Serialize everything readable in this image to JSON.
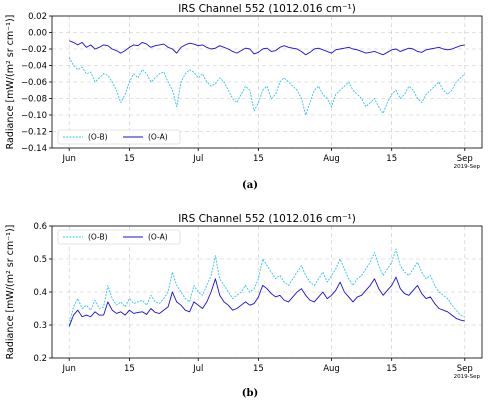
{
  "chart_data": [
    {
      "type": "line",
      "title": "IRS Channel 552 (1012.016 cm⁻¹)",
      "ylabel": "Radiance [mW/(m² sr cm⁻¹)]",
      "x_ticks": [
        "Jun",
        "15",
        "Jul",
        "15",
        "Aug",
        "15",
        "Sep"
      ],
      "x_tick_dates": [
        "2019-06-01",
        "2019-06-15",
        "2019-07-01",
        "2019-07-15",
        "2019-08-01",
        "2019-08-15",
        "2019-09-01"
      ],
      "x_offset_label": "2019-Sep",
      "ylim": [
        -0.14,
        0.02
      ],
      "y_ticks": [
        -0.14,
        -0.12,
        -0.1,
        -0.08,
        -0.06,
        -0.04,
        -0.02,
        0.0,
        0.02
      ],
      "y_tick_labels": [
        "−0.14",
        "−0.12",
        "−0.10",
        "−0.08",
        "−0.06",
        "−0.04",
        "−0.02",
        "0.00",
        "0.02"
      ],
      "grid": true,
      "legend_position": "lower-left",
      "caption": "(a)",
      "series": [
        {
          "name": "(O-B)",
          "color": "#2ec4f0",
          "style": "dashed",
          "values": [
            -0.03,
            -0.04,
            -0.045,
            -0.042,
            -0.05,
            -0.048,
            -0.06,
            -0.055,
            -0.05,
            -0.052,
            -0.06,
            -0.07,
            -0.085,
            -0.075,
            -0.06,
            -0.05,
            -0.055,
            -0.045,
            -0.05,
            -0.06,
            -0.055,
            -0.05,
            -0.048,
            -0.06,
            -0.07,
            -0.09,
            -0.06,
            -0.05,
            -0.045,
            -0.048,
            -0.055,
            -0.05,
            -0.06,
            -0.065,
            -0.062,
            -0.055,
            -0.06,
            -0.07,
            -0.08,
            -0.085,
            -0.075,
            -0.065,
            -0.07,
            -0.095,
            -0.085,
            -0.07,
            -0.065,
            -0.08,
            -0.075,
            -0.06,
            -0.055,
            -0.06,
            -0.065,
            -0.07,
            -0.08,
            -0.1,
            -0.085,
            -0.07,
            -0.065,
            -0.075,
            -0.08,
            -0.09,
            -0.075,
            -0.07,
            -0.065,
            -0.06,
            -0.07,
            -0.075,
            -0.08,
            -0.09,
            -0.085,
            -0.08,
            -0.09,
            -0.098,
            -0.085,
            -0.075,
            -0.07,
            -0.08,
            -0.075,
            -0.065,
            -0.07,
            -0.08,
            -0.085,
            -0.075,
            -0.07,
            -0.065,
            -0.06,
            -0.07,
            -0.075,
            -0.07,
            -0.06,
            -0.055,
            -0.05
          ]
        },
        {
          "name": "(O-A)",
          "color": "#1a0fd4",
          "style": "solid",
          "values": [
            -0.01,
            -0.012,
            -0.015,
            -0.012,
            -0.018,
            -0.015,
            -0.02,
            -0.018,
            -0.015,
            -0.016,
            -0.02,
            -0.022,
            -0.025,
            -0.022,
            -0.018,
            -0.015,
            -0.016,
            -0.012,
            -0.014,
            -0.018,
            -0.016,
            -0.015,
            -0.014,
            -0.018,
            -0.02,
            -0.025,
            -0.018,
            -0.015,
            -0.013,
            -0.014,
            -0.016,
            -0.015,
            -0.018,
            -0.02,
            -0.019,
            -0.016,
            -0.018,
            -0.02,
            -0.023,
            -0.025,
            -0.022,
            -0.019,
            -0.02,
            -0.026,
            -0.024,
            -0.02,
            -0.019,
            -0.023,
            -0.022,
            -0.018,
            -0.016,
            -0.018,
            -0.019,
            -0.02,
            -0.023,
            -0.027,
            -0.024,
            -0.02,
            -0.019,
            -0.021,
            -0.023,
            -0.025,
            -0.021,
            -0.02,
            -0.019,
            -0.018,
            -0.02,
            -0.021,
            -0.023,
            -0.025,
            -0.024,
            -0.023,
            -0.025,
            -0.027,
            -0.024,
            -0.021,
            -0.02,
            -0.023,
            -0.021,
            -0.019,
            -0.02,
            -0.023,
            -0.024,
            -0.021,
            -0.02,
            -0.019,
            -0.018,
            -0.02,
            -0.021,
            -0.02,
            -0.018,
            -0.016,
            -0.015
          ]
        }
      ]
    },
    {
      "type": "line",
      "title": "IRS Channel 552 (1012.016 cm⁻¹)",
      "ylabel": "Radiance [mW/(m² sr cm⁻¹)]",
      "x_ticks": [
        "Jun",
        "15",
        "Jul",
        "15",
        "Aug",
        "15",
        "Sep"
      ],
      "x_tick_dates": [
        "2019-06-01",
        "2019-06-15",
        "2019-07-01",
        "2019-07-15",
        "2019-08-01",
        "2019-08-15",
        "2019-09-01"
      ],
      "x_offset_label": "2019-Sep",
      "ylim": [
        0.2,
        0.6
      ],
      "y_ticks": [
        0.2,
        0.3,
        0.4,
        0.5,
        0.6
      ],
      "y_tick_labels": [
        "0.2",
        "0.3",
        "0.4",
        "0.5",
        "0.6"
      ],
      "grid": true,
      "legend_position": "upper-left",
      "caption": "(b)",
      "series": [
        {
          "name": "(O-B)",
          "color": "#2ec4f0",
          "style": "dashed",
          "values": [
            0.3,
            0.355,
            0.38,
            0.35,
            0.36,
            0.345,
            0.375,
            0.35,
            0.355,
            0.42,
            0.38,
            0.36,
            0.37,
            0.355,
            0.38,
            0.365,
            0.37,
            0.375,
            0.36,
            0.39,
            0.37,
            0.365,
            0.38,
            0.4,
            0.46,
            0.42,
            0.4,
            0.38,
            0.37,
            0.42,
            0.4,
            0.39,
            0.42,
            0.45,
            0.51,
            0.44,
            0.42,
            0.4,
            0.38,
            0.39,
            0.4,
            0.42,
            0.4,
            0.41,
            0.44,
            0.5,
            0.48,
            0.46,
            0.44,
            0.45,
            0.43,
            0.42,
            0.44,
            0.46,
            0.48,
            0.45,
            0.43,
            0.42,
            0.44,
            0.46,
            0.43,
            0.45,
            0.47,
            0.5,
            0.47,
            0.44,
            0.42,
            0.44,
            0.45,
            0.47,
            0.49,
            0.52,
            0.48,
            0.45,
            0.47,
            0.49,
            0.53,
            0.48,
            0.46,
            0.45,
            0.47,
            0.49,
            0.46,
            0.44,
            0.45,
            0.42,
            0.4,
            0.39,
            0.38,
            0.36,
            0.345,
            0.33,
            0.325
          ]
        },
        {
          "name": "(O-A)",
          "color": "#1a0fd4",
          "style": "solid",
          "values": [
            0.295,
            0.33,
            0.345,
            0.325,
            0.33,
            0.325,
            0.34,
            0.33,
            0.33,
            0.37,
            0.345,
            0.335,
            0.34,
            0.33,
            0.345,
            0.335,
            0.338,
            0.34,
            0.332,
            0.35,
            0.338,
            0.335,
            0.345,
            0.355,
            0.4,
            0.37,
            0.36,
            0.345,
            0.34,
            0.37,
            0.36,
            0.35,
            0.37,
            0.4,
            0.44,
            0.39,
            0.37,
            0.36,
            0.345,
            0.35,
            0.36,
            0.37,
            0.36,
            0.365,
            0.385,
            0.42,
            0.41,
            0.395,
            0.385,
            0.39,
            0.375,
            0.37,
            0.385,
            0.4,
            0.41,
            0.39,
            0.375,
            0.37,
            0.385,
            0.4,
            0.38,
            0.39,
            0.405,
            0.43,
            0.4,
            0.385,
            0.37,
            0.385,
            0.39,
            0.405,
            0.42,
            0.44,
            0.41,
            0.39,
            0.405,
            0.42,
            0.445,
            0.41,
            0.395,
            0.39,
            0.405,
            0.42,
            0.395,
            0.38,
            0.385,
            0.365,
            0.35,
            0.345,
            0.34,
            0.33,
            0.32,
            0.315,
            0.312
          ]
        }
      ]
    }
  ]
}
